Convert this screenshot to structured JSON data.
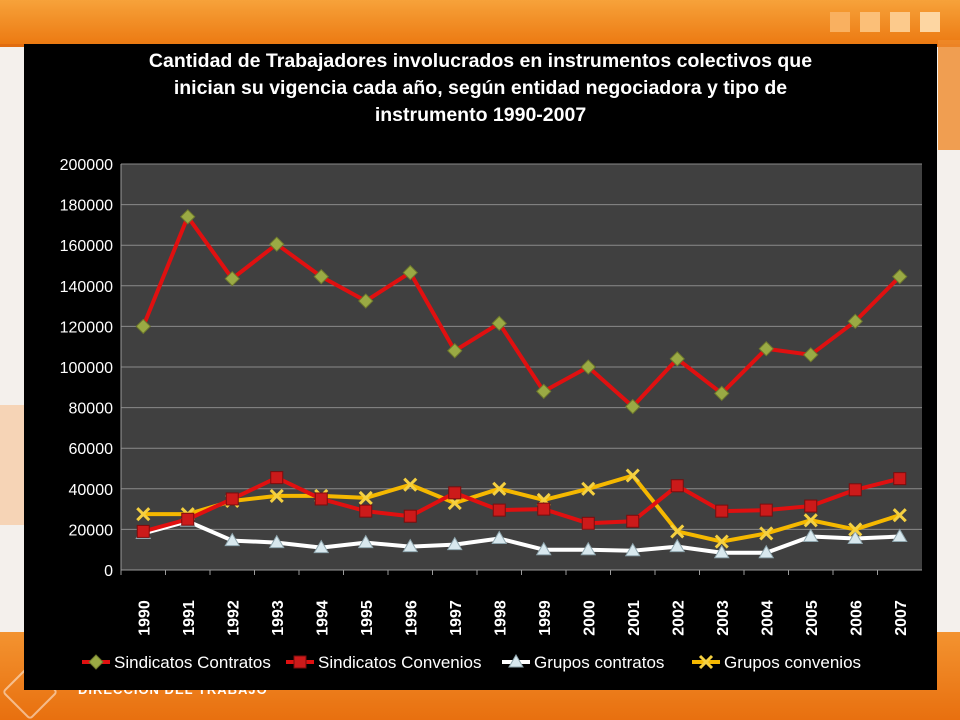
{
  "chart_data": {
    "type": "line",
    "title": "Cantidad de  Trabajadores involucrados en instrumentos colectivos que inician su vigencia cada año, según entidad negociadora y tipo de instrumento 1990-2007",
    "title_lines": [
      "Cantidad de  Trabajadores involucrados en instrumentos colectivos que",
      "inician su vigencia cada año, según entidad negociadora y tipo de",
      "instrumento 1990-2007"
    ],
    "xlabel": "",
    "ylabel": "",
    "ylim": [
      0,
      200000
    ],
    "yticks": [
      "0",
      "20000",
      "40000",
      "60000",
      "80000",
      "100000",
      "120000",
      "140000",
      "160000",
      "180000",
      "200000"
    ],
    "categories": [
      "1990",
      "1991",
      "1992",
      "1993",
      "1994",
      "1995",
      "1996",
      "1997",
      "1998",
      "1999",
      "2000",
      "2001",
      "2002",
      "2003",
      "2004",
      "2005",
      "2006",
      "2007"
    ],
    "grid": true,
    "legend_position": "bottom",
    "series": [
      {
        "name": "Sindicatos Contratos",
        "color": "#e01010",
        "marker": "diamond",
        "marker_color": "#9aaa44",
        "values": [
          120000,
          174000,
          143500,
          160500,
          144500,
          132500,
          146500,
          108000,
          121500,
          88000,
          100000,
          80500,
          104000,
          87000,
          109000,
          106000,
          122500,
          144500
        ]
      },
      {
        "name": "Sindicatos Convenios",
        "color": "#e01010",
        "marker": "square",
        "marker_color": "#cc1a1a",
        "values": [
          19000,
          25000,
          35000,
          45500,
          35000,
          29000,
          26500,
          38000,
          29500,
          30000,
          23000,
          24000,
          41500,
          29000,
          29500,
          31500,
          39500,
          45000
        ]
      },
      {
        "name": "Grupos contratos",
        "color": "#ffffff",
        "marker": "triangle",
        "marker_color": "#d8e8ee",
        "values": [
          18000,
          24000,
          14500,
          13500,
          11000,
          13500,
          11500,
          12500,
          15500,
          10000,
          10000,
          9500,
          11500,
          8500,
          8500,
          16500,
          15500,
          16500
        ]
      },
      {
        "name": "Grupos convenios",
        "color": "#f5b800",
        "marker": "x",
        "marker_color": "#f5d040",
        "values": [
          27500,
          27500,
          34000,
          36500,
          36500,
          35500,
          42000,
          33000,
          40000,
          34500,
          40000,
          46500,
          19000,
          14000,
          18000,
          24500,
          20000,
          27000
        ]
      }
    ]
  },
  "footer": {
    "brand": "DIRECCIÓN DEL TRABAJO"
  },
  "colors": {
    "accent": "#ec7a12",
    "plot_bg": "#404040",
    "grid": "#8a8a8a"
  }
}
